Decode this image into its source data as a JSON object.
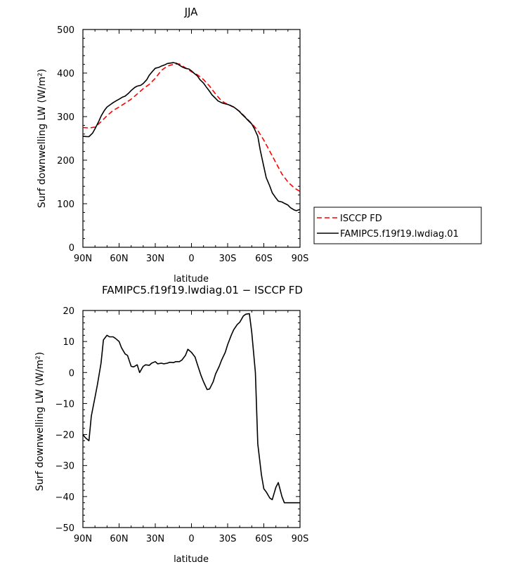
{
  "chart_data": [
    {
      "type": "line",
      "title": "JJA",
      "xlabel": "latitude",
      "ylabel": "Surf downwelling LW (W/m²)",
      "x_ticks": [
        "90N",
        "60N",
        "30N",
        "0",
        "30S",
        "60S",
        "90S"
      ],
      "x_tick_values": [
        90,
        60,
        30,
        0,
        -30,
        -60,
        -90
      ],
      "xlim": [
        90,
        -90
      ],
      "y_ticks": [
        "0",
        "100",
        "200",
        "300",
        "400",
        "500"
      ],
      "y_tick_values": [
        0,
        100,
        200,
        300,
        400,
        500
      ],
      "ylim": [
        0,
        500
      ],
      "legend": "right-outside",
      "series": [
        {
          "name": "ISCCP FD",
          "color": "#ff0000",
          "style": "dashed",
          "x": [
            90,
            85,
            80,
            75,
            70,
            65,
            60,
            55,
            50,
            45,
            40,
            35,
            30,
            25,
            20,
            15,
            10,
            5,
            0,
            -5,
            -10,
            -15,
            -20,
            -25,
            -30,
            -35,
            -40,
            -45,
            -50,
            -55,
            -60,
            -65,
            -70,
            -75,
            -80,
            -85,
            -90
          ],
          "y": [
            275,
            274,
            276,
            288,
            302,
            314,
            322,
            331,
            340,
            352,
            364,
            374,
            388,
            406,
            416,
            420,
            421,
            412,
            403,
            396,
            385,
            370,
            352,
            336,
            328,
            322,
            312,
            298,
            284,
            268,
            246,
            220,
            194,
            168,
            150,
            137,
            128
          ]
        },
        {
          "name": "FAMIPC5.f19f19.lwdiag.01",
          "color": "#000000",
          "style": "solid",
          "x": [
            90,
            87,
            85,
            82,
            80,
            77,
            75,
            72,
            70,
            67,
            65,
            62,
            60,
            57,
            55,
            52,
            50,
            47,
            45,
            42,
            40,
            37,
            35,
            32,
            30,
            27,
            25,
            22,
            20,
            17,
            15,
            12,
            10,
            7,
            5,
            2,
            0,
            -2,
            -5,
            -7,
            -10,
            -12,
            -15,
            -17,
            -20,
            -22,
            -25,
            -27,
            -30,
            -32,
            -35,
            -37,
            -40,
            -42,
            -45,
            -47,
            -50,
            -52,
            -55,
            -57,
            -60,
            -62,
            -65,
            -67,
            -70,
            -72,
            -75,
            -77,
            -80,
            -82,
            -85,
            -87,
            -90
          ],
          "y": [
            255,
            254,
            254,
            262,
            272,
            288,
            301,
            315,
            322,
            328,
            332,
            337,
            340,
            345,
            347,
            354,
            360,
            367,
            370,
            372,
            376,
            385,
            395,
            405,
            411,
            413,
            416,
            419,
            422,
            423,
            424,
            422,
            418,
            413,
            411,
            409,
            405,
            400,
            393,
            385,
            377,
            369,
            358,
            350,
            342,
            336,
            332,
            330,
            328,
            326,
            322,
            318,
            311,
            305,
            297,
            291,
            283,
            273,
            255,
            223,
            185,
            160,
            140,
            125,
            113,
            106,
            104,
            101,
            97,
            91,
            86,
            84,
            87
          ]
        }
      ]
    },
    {
      "type": "line",
      "title": "FAMIPC5.f19f19.lwdiag.01 − ISCCP FD",
      "xlabel": "latitude",
      "ylabel": "Surf downwelling LW (W/m²)",
      "x_ticks": [
        "90N",
        "60N",
        "30N",
        "0",
        "30S",
        "60S",
        "90S"
      ],
      "x_tick_values": [
        90,
        60,
        30,
        0,
        -30,
        -60,
        -90
      ],
      "xlim": [
        90,
        -90
      ],
      "y_ticks": [
        "−50",
        "−40",
        "−30",
        "−20",
        "−10",
        "0",
        "10",
        "20"
      ],
      "y_tick_values": [
        -50,
        -40,
        -30,
        -20,
        -10,
        0,
        10,
        20
      ],
      "ylim": [
        -50,
        20
      ],
      "series": [
        {
          "color": "#000000",
          "style": "solid",
          "x": [
            90,
            88,
            85,
            83,
            80,
            78,
            75,
            73,
            70,
            68,
            65,
            63,
            60,
            58,
            55,
            53,
            50,
            48,
            45,
            43,
            40,
            38,
            35,
            33,
            30,
            28,
            25,
            23,
            20,
            18,
            15,
            13,
            10,
            8,
            5,
            3,
            0,
            -3,
            -5,
            -8,
            -10,
            -13,
            -15,
            -18,
            -20,
            -23,
            -25,
            -28,
            -30,
            -33,
            -35,
            -38,
            -40,
            -43,
            -45,
            -48,
            -50,
            -53,
            -55,
            -58,
            -60,
            -62,
            -65,
            -67,
            -70,
            -72,
            -75,
            -77,
            -80,
            -82,
            -85,
            -87,
            -90
          ],
          "y": [
            -20,
            -21,
            -22,
            -14,
            -8,
            -4,
            3,
            10.5,
            12,
            11.5,
            11.5,
            11,
            10,
            8,
            6,
            5.5,
            2,
            1.8,
            2.5,
            0,
            2,
            2.5,
            2.3,
            3,
            3.5,
            2.8,
            3,
            2.8,
            3,
            3.3,
            3.2,
            3.5,
            3.5,
            4,
            5.5,
            7.5,
            6.5,
            5,
            2.5,
            -1,
            -3,
            -5.5,
            -5.3,
            -3,
            -0.5,
            2,
            4,
            6.5,
            9,
            12,
            13.8,
            15.5,
            16.2,
            18.2,
            18.8,
            19,
            13,
            0,
            -23,
            -33,
            -37.5,
            -38.5,
            -40.5,
            -41,
            -37,
            -35.5,
            -40,
            -42,
            -42,
            -42,
            -42,
            -42,
            -42
          ]
        }
      ]
    }
  ]
}
